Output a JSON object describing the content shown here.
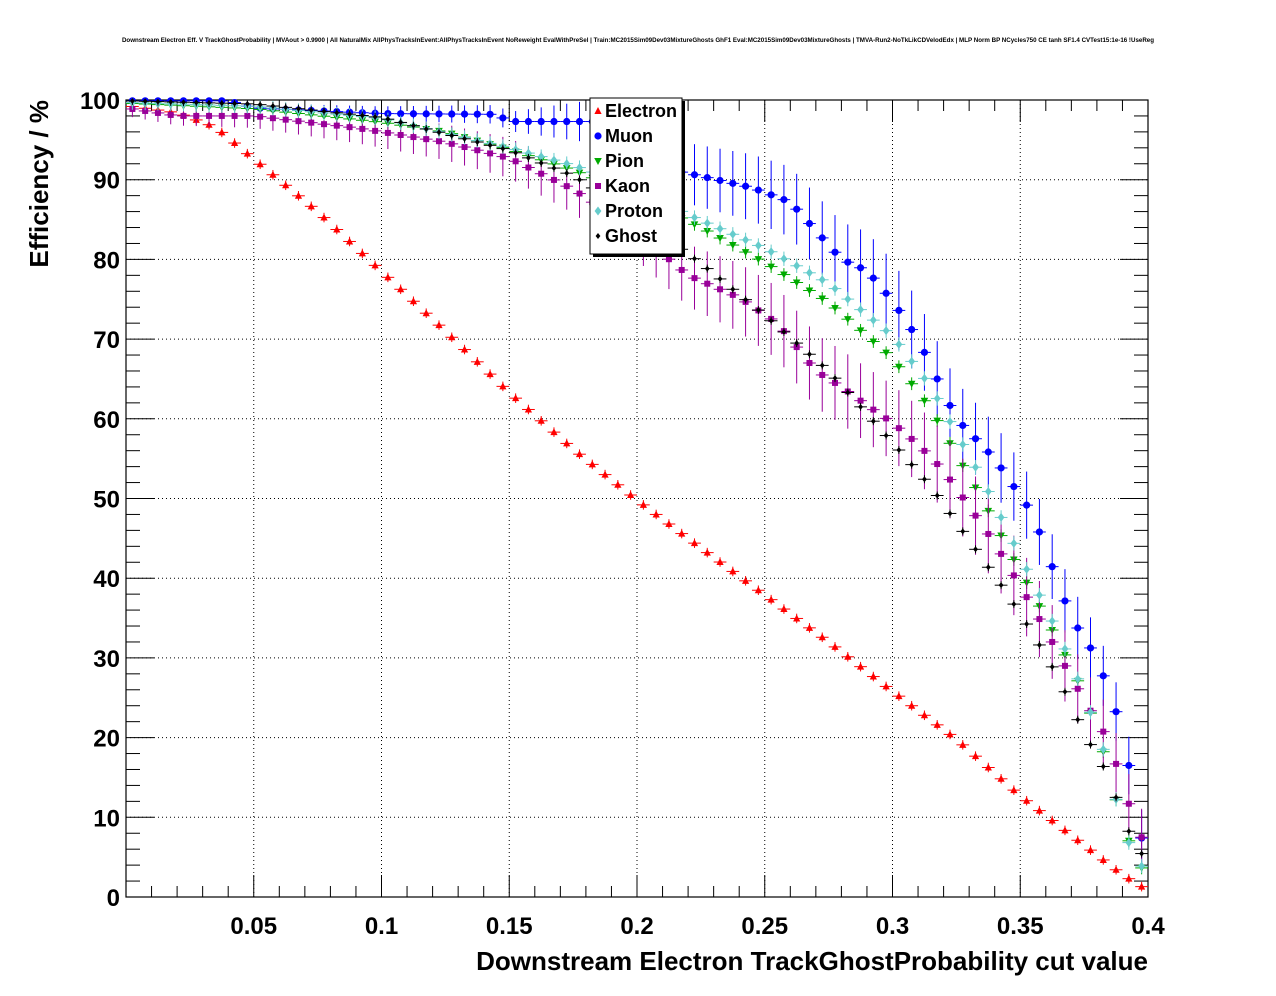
{
  "chart_data": {
    "type": "scatter",
    "title": "Downstream Electron Eff. V TrackGhostProbability | MVAout > 0.9900 | All NaturalMix AllPhysTracksInEvent:AllPhysTracksInEvent NoReweight EvalWithPreSel | Train:MC2015Sim09Dev03MixtureGhosts GhF1 Eval:MC2015Sim09Dev03MixtureGhosts | TMVA-Run2-NoTkLikCDVelodEdx | MLP Norm BP NCycles750 CE tanh SF1.4 CVTest15:1e-16 !UseReg",
    "xlabel": "Downstream Electron TrackGhostProbability cut value",
    "ylabel": "Efficiency / %",
    "xlim": [
      0.0,
      0.4
    ],
    "ylim": [
      0,
      100
    ],
    "x_ticks": [
      "0.05",
      "0.1",
      "0.15",
      "0.2",
      "0.25",
      "0.3",
      "0.35",
      "0.4"
    ],
    "y_ticks": [
      "0",
      "10",
      "20",
      "30",
      "40",
      "50",
      "60",
      "70",
      "80",
      "90",
      "100"
    ],
    "grid": true,
    "legend_position": "top-center",
    "x_step": 0.005,
    "series": [
      {
        "name": "Electron",
        "color": "#ff0000",
        "marker": "triangle-up",
        "err": 0.6,
        "x_range": [
          0.0,
          0.4
        ],
        "anchors": [
          [
            0.0,
            99.3
          ],
          [
            0.02,
            98.4
          ],
          [
            0.035,
            96.6
          ],
          [
            0.05,
            92.6
          ],
          [
            0.075,
            86.0
          ],
          [
            0.1,
            78.5
          ],
          [
            0.125,
            71.0
          ],
          [
            0.15,
            63.3
          ],
          [
            0.175,
            56.2
          ],
          [
            0.2,
            49.8
          ],
          [
            0.225,
            43.8
          ],
          [
            0.25,
            37.9
          ],
          [
            0.275,
            32.0
          ],
          [
            0.3,
            25.8
          ],
          [
            0.325,
            19.8
          ],
          [
            0.35,
            12.7
          ],
          [
            0.375,
            6.5
          ],
          [
            0.39,
            2.8
          ],
          [
            0.4,
            0.8
          ]
        ]
      },
      {
        "name": "Muon",
        "color": "#0000ff",
        "marker": "circle",
        "err_anchors": [
          [
            0.0,
            0.3
          ],
          [
            0.15,
            1.2
          ],
          [
            0.2,
            3.5
          ],
          [
            0.3,
            5.0
          ],
          [
            0.4,
            3.5
          ]
        ],
        "x_range": [
          0.0,
          0.4
        ],
        "anchors": [
          [
            0.0,
            99.9
          ],
          [
            0.04,
            99.9
          ],
          [
            0.05,
            99.0
          ],
          [
            0.1,
            98.3
          ],
          [
            0.145,
            98.2
          ],
          [
            0.15,
            97.3
          ],
          [
            0.19,
            97.3
          ],
          [
            0.2,
            92.0
          ],
          [
            0.22,
            90.8
          ],
          [
            0.245,
            89.0
          ],
          [
            0.26,
            87.2
          ],
          [
            0.28,
            80.0
          ],
          [
            0.29,
            78.6
          ],
          [
            0.3,
            74.8
          ],
          [
            0.31,
            70.0
          ],
          [
            0.325,
            60.0
          ],
          [
            0.34,
            55.0
          ],
          [
            0.355,
            48.0
          ],
          [
            0.36,
            43.6
          ],
          [
            0.37,
            35.0
          ],
          [
            0.38,
            30.0
          ],
          [
            0.39,
            21.0
          ],
          [
            0.395,
            12.0
          ],
          [
            0.4,
            2.8
          ]
        ]
      },
      {
        "name": "Pion",
        "color": "#00aa00",
        "marker": "triangle-down",
        "err": 0.8,
        "x_range": [
          0.0,
          0.4
        ],
        "anchors": [
          [
            0.0,
            99.6
          ],
          [
            0.05,
            98.9
          ],
          [
            0.1,
            97.2
          ],
          [
            0.125,
            96.0
          ],
          [
            0.15,
            93.8
          ],
          [
            0.175,
            91.2
          ],
          [
            0.2,
            88.0
          ],
          [
            0.225,
            84.0
          ],
          [
            0.25,
            79.6
          ],
          [
            0.275,
            74.6
          ],
          [
            0.3,
            67.6
          ],
          [
            0.315,
            61.2
          ],
          [
            0.325,
            55.5
          ],
          [
            0.335,
            50.0
          ],
          [
            0.345,
            43.8
          ],
          [
            0.355,
            38.0
          ],
          [
            0.365,
            32.0
          ],
          [
            0.375,
            25.5
          ],
          [
            0.385,
            15.8
          ],
          [
            0.39,
            8.6
          ],
          [
            0.395,
            5.5
          ],
          [
            0.4,
            1.8
          ]
        ]
      },
      {
        "name": "Kaon",
        "color": "#990099",
        "marker": "square",
        "err_anchors": [
          [
            0.0,
            1.0
          ],
          [
            0.15,
            2.5
          ],
          [
            0.25,
            4.5
          ],
          [
            0.35,
            5.0
          ],
          [
            0.4,
            3.5
          ]
        ],
        "x_range": [
          0.0,
          0.4
        ],
        "anchors": [
          [
            0.0,
            99.0
          ],
          [
            0.02,
            98.0
          ],
          [
            0.05,
            98.0
          ],
          [
            0.09,
            96.5
          ],
          [
            0.1,
            96.0
          ],
          [
            0.125,
            94.7
          ],
          [
            0.15,
            92.7
          ],
          [
            0.175,
            88.8
          ],
          [
            0.2,
            83.4
          ],
          [
            0.22,
            78.0
          ],
          [
            0.24,
            75.2
          ],
          [
            0.255,
            72.0
          ],
          [
            0.27,
            66.0
          ],
          [
            0.28,
            64.0
          ],
          [
            0.29,
            61.7
          ],
          [
            0.3,
            59.5
          ],
          [
            0.31,
            56.8
          ],
          [
            0.32,
            53.5
          ],
          [
            0.33,
            49.0
          ],
          [
            0.34,
            44.4
          ],
          [
            0.35,
            39.0
          ],
          [
            0.36,
            33.5
          ],
          [
            0.37,
            27.5
          ],
          [
            0.38,
            22.0
          ],
          [
            0.385,
            19.5
          ],
          [
            0.39,
            13.9
          ],
          [
            0.395,
            9.5
          ],
          [
            0.4,
            5.5
          ]
        ]
      },
      {
        "name": "Proton",
        "color": "#66cccc",
        "marker": "diamond",
        "err": 0.9,
        "x_range": [
          0.0,
          0.4
        ],
        "anchors": [
          [
            0.0,
            99.7
          ],
          [
            0.05,
            99.2
          ],
          [
            0.1,
            97.7
          ],
          [
            0.15,
            94.0
          ],
          [
            0.175,
            91.8
          ],
          [
            0.2,
            89.0
          ],
          [
            0.22,
            85.6
          ],
          [
            0.25,
            81.4
          ],
          [
            0.275,
            77.0
          ],
          [
            0.3,
            70.4
          ],
          [
            0.315,
            64.0
          ],
          [
            0.325,
            58.2
          ],
          [
            0.335,
            52.5
          ],
          [
            0.345,
            46.0
          ],
          [
            0.355,
            39.5
          ],
          [
            0.365,
            33.0
          ],
          [
            0.375,
            25.5
          ],
          [
            0.385,
            16.2
          ],
          [
            0.39,
            8.3
          ],
          [
            0.4,
            2.4
          ]
        ]
      },
      {
        "name": "Ghost",
        "color": "#000000",
        "marker": "diamond-small",
        "err": 0.5,
        "x_range": [
          0.0,
          0.4
        ],
        "anchors": [
          [
            0.0,
            99.9
          ],
          [
            0.05,
            99.5
          ],
          [
            0.1,
            97.8
          ],
          [
            0.15,
            93.7
          ],
          [
            0.175,
            90.5
          ],
          [
            0.2,
            85.4
          ],
          [
            0.225,
            79.5
          ],
          [
            0.25,
            73.0
          ],
          [
            0.275,
            66.0
          ],
          [
            0.3,
            57.0
          ],
          [
            0.315,
            51.5
          ],
          [
            0.325,
            47.0
          ],
          [
            0.335,
            42.5
          ],
          [
            0.345,
            38.0
          ],
          [
            0.355,
            33.0
          ],
          [
            0.365,
            27.5
          ],
          [
            0.375,
            20.5
          ],
          [
            0.385,
            15.0
          ],
          [
            0.39,
            10.0
          ],
          [
            0.395,
            6.5
          ],
          [
            0.4,
            4.4
          ]
        ]
      }
    ]
  }
}
